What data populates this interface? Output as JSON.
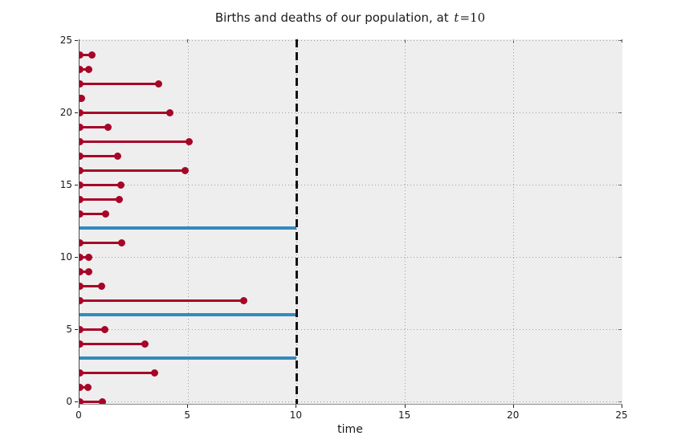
{
  "figure": {
    "title_prefix": "Births and deaths of our population, at ",
    "title_var": "t",
    "title_eq": "=10",
    "xlabel": "time"
  },
  "chart_data": {
    "type": "line",
    "subtype": "horizontal-lifespan-segments",
    "title": "Births and deaths of our population, at t=10",
    "xlabel": "time",
    "ylabel": "",
    "xlim": [
      0,
      25
    ],
    "ylim": [
      0,
      25
    ],
    "xticks": [
      0,
      5,
      10,
      15,
      20,
      25
    ],
    "yticks": [
      0,
      5,
      10,
      15,
      20,
      25
    ],
    "grid": "dotted",
    "legend": "none",
    "current_time": 10,
    "colors": {
      "dead": "#a60628",
      "alive": "#348abd",
      "now_line": "#111111",
      "plot_bg": "#eeeeee",
      "grid": "#9e9e9e"
    },
    "individuals": [
      {
        "index": 0,
        "birth": 0,
        "end": 1.06,
        "alive": false
      },
      {
        "index": 1,
        "birth": 0,
        "end": 0.4,
        "alive": false
      },
      {
        "index": 2,
        "birth": 0,
        "end": 3.46,
        "alive": false
      },
      {
        "index": 3,
        "birth": 0,
        "end": 10,
        "alive": true
      },
      {
        "index": 4,
        "birth": 0,
        "end": 3.03,
        "alive": false
      },
      {
        "index": 5,
        "birth": 0,
        "end": 1.18,
        "alive": false
      },
      {
        "index": 6,
        "birth": 0,
        "end": 10,
        "alive": true
      },
      {
        "index": 7,
        "birth": 0,
        "end": 7.58,
        "alive": false
      },
      {
        "index": 8,
        "birth": 0,
        "end": 1.03,
        "alive": false
      },
      {
        "index": 9,
        "birth": 0,
        "end": 0.42,
        "alive": false
      },
      {
        "index": 10,
        "birth": 0,
        "end": 0.42,
        "alive": false
      },
      {
        "index": 11,
        "birth": 0,
        "end": 1.96,
        "alive": false
      },
      {
        "index": 12,
        "birth": 0,
        "end": 10,
        "alive": true
      },
      {
        "index": 13,
        "birth": 0,
        "end": 1.21,
        "alive": false
      },
      {
        "index": 14,
        "birth": 0,
        "end": 1.82,
        "alive": false
      },
      {
        "index": 15,
        "birth": 0,
        "end": 1.9,
        "alive": false
      },
      {
        "index": 16,
        "birth": 0,
        "end": 4.88,
        "alive": false
      },
      {
        "index": 17,
        "birth": 0,
        "end": 1.76,
        "alive": false
      },
      {
        "index": 18,
        "birth": 0,
        "end": 5.04,
        "alive": false
      },
      {
        "index": 19,
        "birth": 0,
        "end": 1.3,
        "alive": false
      },
      {
        "index": 20,
        "birth": 0,
        "end": 4.17,
        "alive": false
      },
      {
        "index": 21,
        "birth": 0,
        "end": 0.1,
        "alive": false
      },
      {
        "index": 22,
        "birth": 0,
        "end": 3.65,
        "alive": false
      },
      {
        "index": 23,
        "birth": 0,
        "end": 0.44,
        "alive": false
      },
      {
        "index": 24,
        "birth": 0,
        "end": 0.59,
        "alive": false
      }
    ]
  }
}
